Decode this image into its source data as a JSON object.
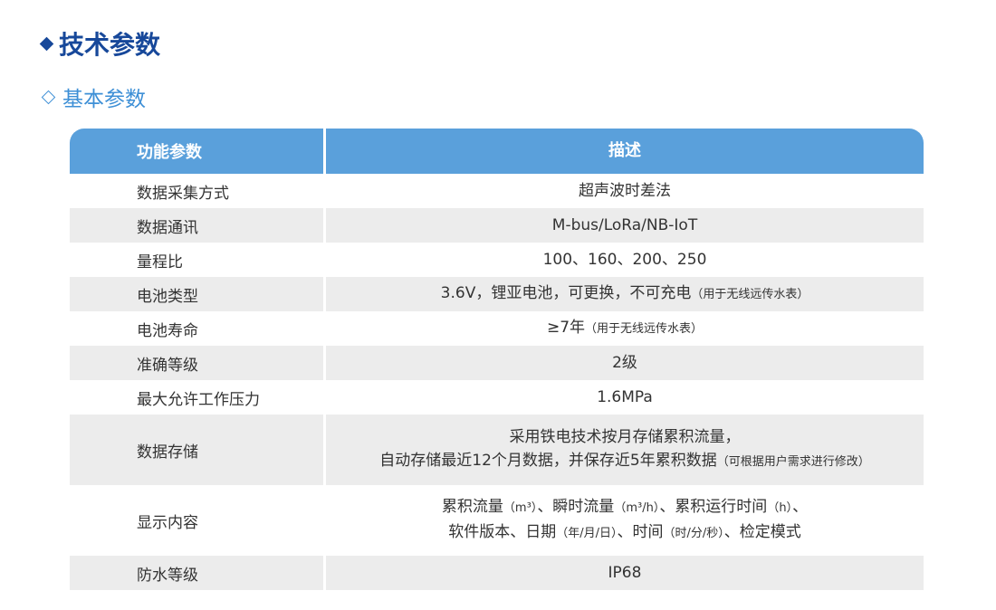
{
  "header": {
    "title": "技术参数",
    "subtitle": "基本参数"
  },
  "table": {
    "columns": [
      "功能参数",
      "描述"
    ],
    "rows": [
      {
        "name": "数据采集方式",
        "lines": [
          [
            {
              "text": "超声波时差法"
            }
          ]
        ]
      },
      {
        "name": "数据通讯",
        "lines": [
          [
            {
              "text": "M-bus/LoRa/NB-IoT"
            }
          ]
        ]
      },
      {
        "name": "量程比",
        "lines": [
          [
            {
              "text": "100、160、200、250"
            }
          ]
        ]
      },
      {
        "name": "电池类型",
        "lines": [
          [
            {
              "text": "3.6V，锂亚电池，可更换，不可充电"
            },
            {
              "text": "（用于无线远传水表）",
              "small": true
            }
          ]
        ]
      },
      {
        "name": "电池寿命",
        "lines": [
          [
            {
              "text": "≥7年"
            },
            {
              "text": "（用于无线远传水表）",
              "small": true
            }
          ]
        ]
      },
      {
        "name": "准确等级",
        "lines": [
          [
            {
              "text": "2级"
            }
          ]
        ]
      },
      {
        "name": "最大允许工作压力",
        "lines": [
          [
            {
              "text": "1.6MPa"
            }
          ]
        ]
      },
      {
        "name": "数据存储",
        "lines": [
          [
            {
              "text": "采用铁电技术按月存储累积流量，"
            }
          ],
          [
            {
              "text": "自动存储最近12个月数据，并保存近5年累积数据"
            },
            {
              "text": "（可根据用户需求进行修改）",
              "small": true
            }
          ]
        ]
      },
      {
        "name": "显示内容",
        "lines": [
          [
            {
              "text": "累积流量"
            },
            {
              "text": "（m³）",
              "small": true
            },
            {
              "text": "、瞬时流量"
            },
            {
              "text": "（m³/h）",
              "small": true
            },
            {
              "text": "、累积运行时间"
            },
            {
              "text": "（h）",
              "small": true
            },
            {
              "text": "、"
            }
          ],
          [
            {
              "text": "软件版本、日期"
            },
            {
              "text": "（年/月/日）",
              "small": true
            },
            {
              "text": "、时间"
            },
            {
              "text": "（时/分/秒）",
              "small": true
            },
            {
              "text": "、检定模式"
            }
          ]
        ]
      },
      {
        "name": "防水等级",
        "lines": [
          [
            {
              "text": "IP68"
            }
          ]
        ]
      }
    ]
  }
}
